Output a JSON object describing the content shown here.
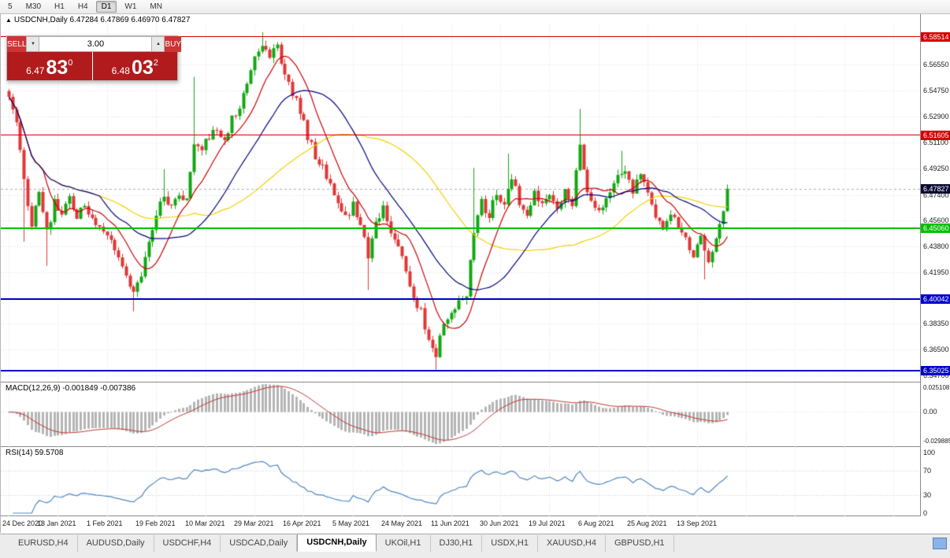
{
  "toolbar": {
    "timeframes": [
      "5",
      "M30",
      "H1",
      "H4",
      "D1",
      "W1",
      "MN"
    ],
    "active": "D1"
  },
  "chart": {
    "title_arrow": "▲",
    "symbol_line": "USDCNH,Daily 6.47284 6.47869 6.46970 6.47827",
    "current_price": "6.47827"
  },
  "trade_widget": {
    "sell_label": "SELL",
    "buy_label": "BUY",
    "volume": "3.00",
    "spin_down": "▼",
    "spin_up": "▲",
    "sell_price": {
      "prefix": "6.47",
      "big": "83",
      "sup": "0"
    },
    "buy_price": {
      "prefix": "6.48",
      "big": "03",
      "sup": "2"
    }
  },
  "levels": [
    {
      "price": 6.58514,
      "label": "6.58514",
      "color": "#d40000",
      "width": 1
    },
    {
      "price": 6.51605,
      "label": "6.51605",
      "color": "#d40000",
      "width": 1
    },
    {
      "price": 6.4506,
      "label": "6.45060",
      "color": "#00c000",
      "width": 2
    },
    {
      "price": 6.40042,
      "label": "6.40042",
      "color": "#0000cc",
      "width": 2
    },
    {
      "price": 6.35025,
      "label": "6.35025",
      "color": "#0000cc",
      "width": 2
    }
  ],
  "price_axis": {
    "ticks": [
      {
        "v": 6.584,
        "label": "6.58400"
      },
      {
        "v": 6.5655,
        "label": "6.56550"
      },
      {
        "v": 6.5475,
        "label": "6.54750"
      },
      {
        "v": 6.529,
        "label": "6.52900"
      },
      {
        "v": 6.511,
        "label": "6.51100"
      },
      {
        "v": 6.4925,
        "label": "6.49250"
      },
      {
        "v": 6.474,
        "label": "6.47400"
      },
      {
        "v": 6.456,
        "label": "6.45600"
      },
      {
        "v": 6.438,
        "label": "6.43800"
      },
      {
        "v": 6.4195,
        "label": "6.41950"
      },
      {
        "v": 6.4015,
        "label": "6.40150"
      },
      {
        "v": 6.3835,
        "label": "6.38350"
      },
      {
        "v": 6.365,
        "label": "6.36500"
      },
      {
        "v": 6.347,
        "label": "6.34700"
      }
    ]
  },
  "time_axis": {
    "candles_per_label": 13,
    "labels": [
      "24 Dec 2020",
      "13 Jan 2021",
      "1 Feb 2021",
      "19 Feb 2021",
      "10 Mar 2021",
      "29 Mar 2021",
      "16 Apr 2021",
      "5 May 2021",
      "24 May 2021",
      "11 Jun 2021",
      "30 Jun 2021",
      "19 Jul 2021",
      "6 Aug 2021",
      "25 Aug 2021",
      "13 Sep 2021"
    ]
  },
  "panes": {
    "macd": {
      "title": "MACD(12,26,9) -0.001849 -0.007386",
      "axis": [
        "0.025108",
        "0.00",
        "-0.029885"
      ],
      "range": [
        -0.0299,
        0.0251
      ]
    },
    "rsi": {
      "title": "RSI(14) 59.5708",
      "axis": [
        {
          "v": 100,
          "label": "100"
        },
        {
          "v": 70,
          "label": "70"
        },
        {
          "v": 30,
          "label": "30"
        },
        {
          "v": 0,
          "label": "0"
        }
      ],
      "dotted_levels": [
        70,
        30
      ]
    }
  },
  "tabs": {
    "items": [
      "EURUSD,H4",
      "AUDUSD,Daily",
      "USDCHF,H4",
      "USDCAD,Daily",
      "USDCNH,Daily",
      "UKOil,H1",
      "DJ30,H1",
      "USDX,H1",
      "XAUUSD,H4",
      "GBPUSD,H1"
    ],
    "active_index": 4
  },
  "colors": {
    "grid": "#e0e0e0",
    "price_label_bg": "#0a0a32"
  },
  "chart_data": {
    "type": "candlestick",
    "symbol": "USDCNH",
    "timeframe": "Daily",
    "ohlc_display": {
      "open": "6.47284",
      "high": "6.47869",
      "low": "6.46970",
      "close": "6.47827"
    },
    "y_range": [
      6.343,
      6.5945
    ],
    "num_candles": 191,
    "last_close": 6.47827,
    "seed": 12,
    "close_anchors": [
      [
        0,
        6.543
      ],
      [
        2,
        6.528
      ],
      [
        4,
        6.482
      ],
      [
        6,
        6.455
      ],
      [
        8,
        6.475
      ],
      [
        10,
        6.448
      ],
      [
        12,
        6.468
      ],
      [
        14,
        6.46
      ],
      [
        16,
        6.472
      ],
      [
        18,
        6.455
      ],
      [
        20,
        6.468
      ],
      [
        22,
        6.455
      ],
      [
        24,
        6.452
      ],
      [
        26,
        6.448
      ],
      [
        28,
        6.438
      ],
      [
        30,
        6.425
      ],
      [
        33,
        6.405
      ],
      [
        35,
        6.418
      ],
      [
        37,
        6.442
      ],
      [
        39,
        6.46
      ],
      [
        41,
        6.475
      ],
      [
        43,
        6.466
      ],
      [
        45,
        6.476
      ],
      [
        47,
        6.47
      ],
      [
        49,
        6.512
      ],
      [
        51,
        6.506
      ],
      [
        53,
        6.516
      ],
      [
        55,
        6.52
      ],
      [
        57,
        6.513
      ],
      [
        59,
        6.528
      ],
      [
        61,
        6.538
      ],
      [
        63,
        6.552
      ],
      [
        65,
        6.572
      ],
      [
        67,
        6.582
      ],
      [
        69,
        6.57
      ],
      [
        71,
        6.578
      ],
      [
        73,
        6.558
      ],
      [
        75,
        6.545
      ],
      [
        77,
        6.533
      ],
      [
        79,
        6.515
      ],
      [
        81,
        6.502
      ],
      [
        83,
        6.492
      ],
      [
        85,
        6.482
      ],
      [
        87,
        6.468
      ],
      [
        89,
        6.458
      ],
      [
        91,
        6.466
      ],
      [
        93,
        6.45
      ],
      [
        95,
        6.432
      ],
      [
        97,
        6.455
      ],
      [
        99,
        6.464
      ],
      [
        101,
        6.45
      ],
      [
        103,
        6.437
      ],
      [
        105,
        6.42
      ],
      [
        107,
        6.403
      ],
      [
        109,
        6.392
      ],
      [
        111,
        6.372
      ],
      [
        113,
        6.362
      ],
      [
        115,
        6.385
      ],
      [
        117,
        6.39
      ],
      [
        119,
        6.398
      ],
      [
        121,
        6.405
      ],
      [
        123,
        6.45
      ],
      [
        125,
        6.47
      ],
      [
        127,
        6.458
      ],
      [
        129,
        6.476
      ],
      [
        131,
        6.466
      ],
      [
        133,
        6.485
      ],
      [
        135,
        6.47
      ],
      [
        137,
        6.462
      ],
      [
        139,
        6.477
      ],
      [
        141,
        6.467
      ],
      [
        143,
        6.472
      ],
      [
        145,
        6.467
      ],
      [
        147,
        6.477
      ],
      [
        149,
        6.467
      ],
      [
        151,
        6.512
      ],
      [
        153,
        6.477
      ],
      [
        155,
        6.464
      ],
      [
        157,
        6.468
      ],
      [
        159,
        6.476
      ],
      [
        161,
        6.486
      ],
      [
        163,
        6.49
      ],
      [
        165,
        6.477
      ],
      [
        167,
        6.487
      ],
      [
        169,
        6.476
      ],
      [
        171,
        6.461
      ],
      [
        173,
        6.452
      ],
      [
        175,
        6.461
      ],
      [
        177,
        6.451
      ],
      [
        179,
        6.441
      ],
      [
        181,
        6.431
      ],
      [
        183,
        6.443
      ],
      [
        185,
        6.43
      ],
      [
        187,
        6.442
      ],
      [
        189,
        6.465
      ],
      [
        190,
        6.47827
      ]
    ],
    "wicks": [
      {
        "i": 4,
        "low": 6.441
      },
      {
        "i": 10,
        "low": 6.424
      },
      {
        "i": 33,
        "low": 6.392
      },
      {
        "i": 41,
        "high": 6.492
      },
      {
        "i": 49,
        "high": 6.557
      },
      {
        "i": 67,
        "high": 6.5885
      },
      {
        "i": 95,
        "low": 6.407
      },
      {
        "i": 113,
        "low": 6.3505
      },
      {
        "i": 123,
        "high": 6.493
      },
      {
        "i": 132,
        "high": 6.503
      },
      {
        "i": 151,
        "high": 6.5345
      },
      {
        "i": 162,
        "high": 6.505
      },
      {
        "i": 184,
        "low": 6.4145
      }
    ],
    "moving_averages": [
      {
        "period": 50,
        "color": "#f0d000"
      },
      {
        "period": 10,
        "color": "#cc0000"
      },
      {
        "period": 25,
        "color": "#000080"
      }
    ],
    "macd": {
      "fast": 12,
      "slow": 26,
      "signal": 9,
      "last_main": -0.001849,
      "last_signal": -0.007386,
      "histogram_color": "#b4b4b4",
      "signal_color": "#c03535"
    },
    "rsi": {
      "period": 14,
      "last": 59.5708,
      "color": "#4f86c0"
    },
    "horizontal_levels": [
      6.58514,
      6.51605,
      6.4506,
      6.40042,
      6.35025
    ],
    "colors": {
      "up": "#12a712",
      "down": "#e03636"
    }
  }
}
